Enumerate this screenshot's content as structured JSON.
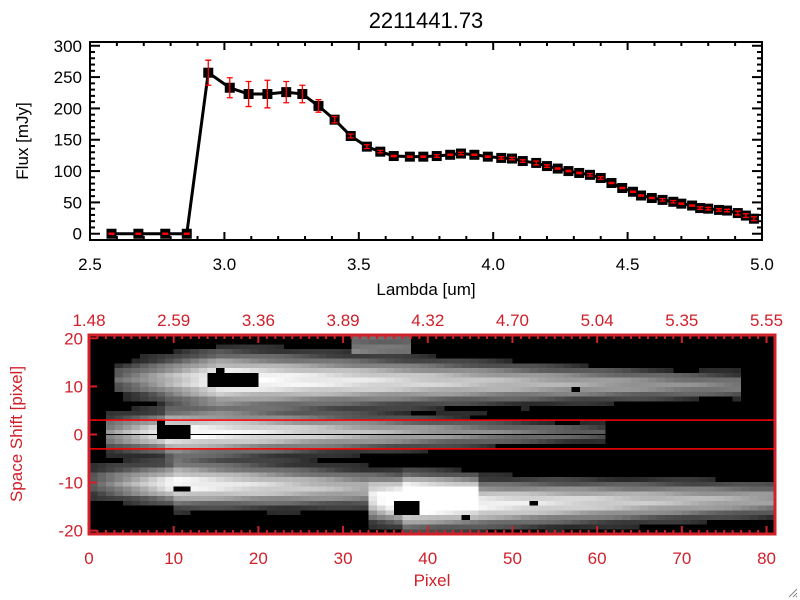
{
  "title": "2211441.73",
  "chart_data": [
    {
      "type": "line",
      "xlabel": "Lambda [um]",
      "ylabel": "Flux [mJy]",
      "xlim": [
        2.5,
        5.0
      ],
      "ylim": [
        -10,
        306
      ],
      "xticks": [
        "2.5",
        "3.0",
        "3.5",
        "4.0",
        "4.5",
        "5.0"
      ],
      "xtick_values": [
        2.5,
        3.0,
        3.5,
        4.0,
        4.5,
        5.0
      ],
      "yticks": [
        "0",
        "50",
        "100",
        "150",
        "200",
        "250",
        "300"
      ],
      "ytick_values": [
        0,
        50,
        100,
        150,
        200,
        250,
        300
      ],
      "line_color": "#000000",
      "errorbar_color": "#ff0000",
      "x": [
        2.58,
        2.68,
        2.78,
        2.86,
        2.94,
        3.02,
        3.09,
        3.16,
        3.23,
        3.29,
        3.35,
        3.41,
        3.47,
        3.53,
        3.58,
        3.63,
        3.69,
        3.74,
        3.79,
        3.84,
        3.88,
        3.93,
        3.98,
        4.03,
        4.07,
        4.11,
        4.16,
        4.2,
        4.24,
        4.28,
        4.32,
        4.36,
        4.4,
        4.44,
        4.48,
        4.52,
        4.55,
        4.59,
        4.63,
        4.67,
        4.7,
        4.74,
        4.77,
        4.8,
        4.84,
        4.87,
        4.91,
        4.94,
        4.97
      ],
      "y": [
        0,
        0,
        0,
        0,
        257,
        233,
        223,
        223,
        226,
        223,
        204,
        182,
        156,
        139,
        131,
        124,
        123,
        123,
        124,
        126,
        128,
        126,
        123,
        121,
        120,
        116,
        113,
        108,
        104,
        100,
        97,
        94,
        89,
        81,
        73,
        67,
        61,
        57,
        54,
        51,
        48,
        45,
        41,
        40,
        38,
        37,
        33,
        29,
        24
      ],
      "yerr": [
        1,
        1,
        1,
        1,
        20,
        16,
        20,
        22,
        17,
        14,
        10,
        5,
        3,
        3,
        2,
        1,
        1,
        1,
        2,
        1,
        2,
        1,
        1,
        2,
        2,
        2,
        3,
        2,
        1,
        1,
        1,
        2,
        2,
        1,
        1,
        1,
        1,
        1,
        2,
        2,
        1,
        1,
        2,
        2,
        2,
        2,
        3,
        3,
        3
      ]
    },
    {
      "type": "heatmap",
      "xlabel": "Pixel",
      "ylabel": "Space Shift [pixel]",
      "xlim": [
        0,
        81
      ],
      "ylim": [
        -20.7,
        20.7
      ],
      "xticks": [
        "0",
        "10",
        "20",
        "30",
        "40",
        "50",
        "60",
        "70",
        "80"
      ],
      "xtick_values": [
        0,
        10,
        20,
        30,
        40,
        50,
        60,
        70,
        80
      ],
      "top_xticks": [
        "1.48",
        "2.59",
        "3.36",
        "3.89",
        "4.32",
        "4.70",
        "5.04",
        "5.35",
        "5.55"
      ],
      "yticks": [
        "20",
        "10",
        "0",
        "-10",
        "-20"
      ],
      "ytick_values": [
        20,
        10,
        0,
        -10,
        -20
      ],
      "extraction_limits": [
        3,
        -3
      ],
      "center_line": 0,
      "axis_color": "#d0202a",
      "limit_color": "#ff0000",
      "colormap": "grayscale"
    }
  ]
}
